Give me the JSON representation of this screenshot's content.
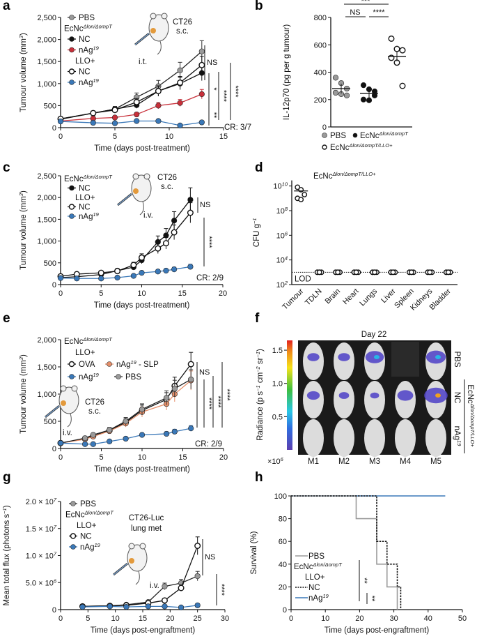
{
  "panels": [
    "a",
    "b",
    "c",
    "d",
    "e",
    "f",
    "g",
    "h"
  ],
  "colors": {
    "pbs": "#9a9a9a",
    "black": "#111111",
    "red": "#c8303a",
    "blue": "#3a78b8",
    "orange": "#e58f6a",
    "cr": "#3a7fc0"
  },
  "chart_data": [
    {
      "id": "a",
      "type": "line",
      "xlabel": "Time (days post-treatment)",
      "ylabel": "Tumour volume (mm",
      "ylabel_sup": "3",
      "ylabel_end": ")",
      "xlim": [
        0,
        15
      ],
      "ylim": [
        0,
        2500
      ],
      "xticks": [
        0,
        5,
        10,
        15
      ],
      "xtick_labels": [
        "0",
        "5",
        "10",
        "15"
      ],
      "yticks": [
        0,
        500,
        1000,
        1500,
        2000,
        2500
      ],
      "ytick_labels": [
        "0",
        "500",
        "1,000",
        "1,500",
        "2,000",
        "2,500"
      ],
      "series": [
        {
          "name": "PBS",
          "color": "#9a9a9a",
          "marker": "filled",
          "x": [
            0,
            3,
            5,
            7,
            9,
            11,
            13
          ],
          "y": [
            200,
            330,
            420,
            690,
            940,
            1300,
            1730
          ]
        },
        {
          "name": "EcNc NC",
          "color": "#111111",
          "marker": "filled",
          "x": [
            0,
            3,
            5,
            7,
            9,
            11,
            13
          ],
          "y": [
            190,
            330,
            420,
            510,
            830,
            1000,
            1240
          ]
        },
        {
          "name": "EcNc nAg19",
          "color": "#c8303a",
          "marker": "filled",
          "x": [
            0,
            3,
            5,
            7,
            9,
            11,
            13
          ],
          "y": [
            150,
            210,
            230,
            300,
            500,
            560,
            760
          ]
        },
        {
          "name": "LLO+ NC",
          "color": "#111111",
          "marker": "open",
          "x": [
            0,
            3,
            5,
            7,
            9,
            11,
            13
          ],
          "y": [
            200,
            330,
            400,
            580,
            830,
            1020,
            1420
          ]
        },
        {
          "name": "LLO+ nAg19",
          "color": "#3a78b8",
          "marker": "filled",
          "x": [
            0,
            3,
            5,
            7,
            9,
            11,
            13
          ],
          "y": [
            140,
            110,
            100,
            150,
            150,
            50,
            120
          ]
        }
      ],
      "legend": [
        {
          "label": "PBS",
          "marker": "filled",
          "color": "#9a9a9a"
        },
        {
          "label": "EcNc",
          "sup": "Δlon/ΔompT",
          "marker": "none"
        },
        {
          "label": "NC",
          "marker": "filled",
          "color": "#111111"
        },
        {
          "label": "nAg",
          "sup": "19",
          "marker": "filled",
          "color": "#c8303a"
        },
        {
          "label": "LLO+",
          "marker": "none"
        },
        {
          "label": "NC",
          "marker": "open",
          "color": "#111111"
        },
        {
          "label": "nAg",
          "sup": "19",
          "marker": "filled",
          "color": "#3a78b8"
        }
      ],
      "annotations": {
        "model": "CT26",
        "route": "s.c.",
        "injection": "i.t.",
        "cr": "CR: 3/7"
      },
      "significance": [
        "NS",
        "*",
        "**",
        "****",
        "****"
      ]
    },
    {
      "id": "b",
      "type": "scatter",
      "ylabel": "IL-12p70 (pg per g tumour)",
      "ylim": [
        0,
        800
      ],
      "yticks": [
        0,
        200,
        400,
        600,
        800
      ],
      "ytick_labels": [
        "0",
        "200",
        "400",
        "600",
        "800"
      ],
      "groups": [
        {
          "name": "PBS",
          "color": "#9a9a9a",
          "marker": "filled",
          "values": [
            360,
            320,
            280,
            250,
            240,
            230
          ],
          "mean": 280
        },
        {
          "name": "EcNc Δlon/ΔompT",
          "color": "#111111",
          "marker": "filled",
          "values": [
            305,
            275,
            230,
            200,
            195,
            260
          ],
          "mean": 245
        },
        {
          "name": "EcNc Δlon/ΔompT/LLO+",
          "color": "#111111",
          "marker": "open",
          "values": [
            645,
            570,
            560,
            505,
            470,
            300
          ],
          "mean": 515
        }
      ],
      "legend": [
        {
          "label": "PBS",
          "marker": "filled",
          "color": "#9a9a9a"
        },
        {
          "label": "EcNc",
          "sup": "Δlon/ΔompT",
          "marker": "filled",
          "color": "#111111"
        },
        {
          "label": "EcNc",
          "sup": "Δlon/ΔompT/LLO+",
          "marker": "open",
          "color": "#111111"
        }
      ],
      "significance": [
        "***",
        "NS",
        "****"
      ]
    },
    {
      "id": "c",
      "type": "line",
      "xlabel": "Time (days post-treatment)",
      "ylabel": "Tumour volume (mm",
      "ylabel_sup": "3",
      "ylabel_end": ")",
      "xlim": [
        0,
        20
      ],
      "ylim": [
        0,
        2500
      ],
      "xticks": [
        0,
        5,
        10,
        15,
        20
      ],
      "xtick_labels": [
        "0",
        "5",
        "10",
        "15",
        "20"
      ],
      "yticks": [
        0,
        500,
        1000,
        1500,
        2000,
        2500
      ],
      "ytick_labels": [
        "0",
        "500",
        "1,000",
        "1,500",
        "2,000",
        "2,500"
      ],
      "series": [
        {
          "name": "EcNc NC",
          "color": "#111111",
          "marker": "filled",
          "x": [
            0,
            2,
            5,
            7,
            9,
            10,
            12,
            13,
            14,
            16
          ],
          "y": [
            160,
            180,
            230,
            320,
            400,
            560,
            980,
            1130,
            1470,
            1950
          ]
        },
        {
          "name": "LLO+ NC",
          "color": "#111111",
          "marker": "open",
          "x": [
            0,
            2,
            5,
            7,
            9,
            10,
            12,
            13,
            14,
            16
          ],
          "y": [
            190,
            240,
            270,
            310,
            450,
            620,
            830,
            950,
            1200,
            1650
          ]
        },
        {
          "name": "LLO+ nAg19",
          "color": "#3a78b8",
          "marker": "filled",
          "x": [
            0,
            2,
            5,
            7,
            9,
            10,
            12,
            13,
            14,
            16
          ],
          "y": [
            150,
            140,
            140,
            160,
            200,
            270,
            300,
            320,
            350,
            410
          ]
        }
      ],
      "legend": [
        {
          "label": "EcNc",
          "sup": "Δlon/ΔompT",
          "marker": "none"
        },
        {
          "label": "NC",
          "marker": "filled",
          "color": "#111111"
        },
        {
          "label": "LLO+",
          "marker": "none"
        },
        {
          "label": "NC",
          "marker": "open",
          "color": "#111111"
        },
        {
          "label": "nAg",
          "sup": "19",
          "marker": "filled",
          "color": "#3a78b8"
        }
      ],
      "annotations": {
        "model": "CT26",
        "route": "s.c.",
        "injection": "i.v.",
        "cr": "CR: 2/9"
      },
      "significance": [
        "NS",
        "****"
      ]
    },
    {
      "id": "d",
      "type": "scatter",
      "ylabel": "CFU g",
      "ylabel_sup": "−1",
      "yscale": "log",
      "ylim": [
        100,
        100000000000
      ],
      "yticks": [
        2,
        4,
        6,
        8,
        10
      ],
      "ytick_labels": [
        "10",
        "10",
        "10",
        "10",
        "10"
      ],
      "ytick_sups": [
        "2",
        "4",
        "6",
        "8",
        "10"
      ],
      "title": "EcNc",
      "title_sup": "Δlon/ΔompT/LLO+",
      "categories": [
        "Tumour",
        "TDLN",
        "Brain",
        "Heart",
        "Lungs",
        "Liver",
        "Spleen",
        "Kidneys",
        "Bladder"
      ],
      "values_log10": [
        [
          9.9,
          9.7,
          9.3,
          9.0,
          8.9
        ],
        [
          3,
          3,
          3,
          3,
          3
        ],
        [
          3,
          3,
          3,
          3,
          3
        ],
        [
          3,
          3,
          3,
          3,
          3
        ],
        [
          3,
          3,
          3,
          3,
          3
        ],
        [
          3,
          3,
          3,
          3,
          3
        ],
        [
          3,
          3,
          3,
          3,
          3
        ],
        [
          3,
          3,
          3,
          3,
          3
        ],
        [
          3,
          3,
          3,
          3,
          3
        ]
      ],
      "lod_log10": 3,
      "lod_label": "LOD"
    },
    {
      "id": "e",
      "type": "line",
      "xlabel": "Time (days post-treatment)",
      "ylabel": "Tumour volume (mm",
      "ylabel_sup": "3",
      "ylabel_end": ")",
      "xlim": [
        0,
        20
      ],
      "ylim": [
        0,
        2000
      ],
      "xticks": [
        0,
        5,
        10,
        15,
        20
      ],
      "xtick_labels": [
        "0",
        "5",
        "10",
        "15",
        "20"
      ],
      "yticks": [
        0,
        500,
        1000,
        1500,
        2000
      ],
      "ytick_labels": [
        "0",
        "500",
        "1,000",
        "1,500",
        "2,000"
      ],
      "series": [
        {
          "name": "OVA",
          "color": "#111111",
          "marker": "open",
          "x": [
            0,
            3,
            4,
            6,
            8,
            10,
            13,
            14,
            16
          ],
          "y": [
            100,
            180,
            230,
            330,
            480,
            700,
            900,
            1150,
            1550
          ]
        },
        {
          "name": "nAg19 - SLP",
          "color": "#e58f6a",
          "marker": "filled",
          "x": [
            0,
            3,
            4,
            6,
            8,
            10,
            13,
            14,
            16
          ],
          "y": [
            100,
            170,
            220,
            320,
            460,
            670,
            820,
            1000,
            1250
          ]
        },
        {
          "name": "PBS",
          "color": "#9a9a9a",
          "marker": "filled",
          "x": [
            0,
            3,
            4,
            6,
            8,
            10,
            13,
            14,
            16
          ],
          "y": [
            100,
            190,
            250,
            340,
            500,
            720,
            930,
            1100,
            1270
          ]
        },
        {
          "name": "nAg19",
          "color": "#3a78b8",
          "marker": "filled",
          "x": [
            0,
            3,
            4,
            6,
            8,
            10,
            13,
            14,
            16
          ],
          "y": [
            100,
            80,
            80,
            130,
            180,
            250,
            270,
            310,
            370
          ]
        }
      ],
      "legend": [
        {
          "label": "EcNc",
          "sup": "Δlon/ΔompT",
          "marker": "none"
        },
        {
          "label": "LLO+",
          "marker": "none"
        },
        {
          "label": "OVA",
          "marker": "open",
          "color": "#111111"
        },
        {
          "label": "nAg",
          "sup": "19",
          "marker": "filled",
          "color": "#3a78b8"
        },
        {
          "label": "nAg",
          "sup": "19",
          "tail": " - SLP",
          "marker": "filled",
          "color": "#e58f6a"
        },
        {
          "label": "PBS",
          "marker": "filled",
          "color": "#9a9a9a"
        }
      ],
      "annotations": {
        "model": "CT26",
        "route": "s.c.",
        "injection": "i.v.",
        "cr": "CR: 2/9"
      },
      "significance": [
        "NS",
        "****",
        "****",
        "****"
      ]
    },
    {
      "id": "g",
      "type": "line",
      "xlabel": "Time (days post-engraftment)",
      "ylabel": "Mean total flux (photons s",
      "ylabel_sup": "−1",
      "ylabel_end": ")",
      "xlim": [
        0,
        30
      ],
      "ylim": [
        0,
        20000000
      ],
      "xticks": [
        0,
        5,
        10,
        15,
        20,
        25,
        30
      ],
      "xtick_labels": [
        "0",
        "5",
        "10",
        "15",
        "20",
        "25",
        "30"
      ],
      "yticks": [
        0,
        5000000,
        10000000,
        15000000,
        20000000
      ],
      "ytick_labels": [
        "0",
        "5.0 × 10",
        "1.0 × 10",
        "1.5 × 10",
        "2.0 × 10"
      ],
      "ytick_sups": [
        "",
        "6",
        "7",
        "7",
        "7"
      ],
      "series": [
        {
          "name": "PBS",
          "color": "#9a9a9a",
          "marker": "filled",
          "x": [
            4,
            9,
            12,
            16,
            19,
            22,
            25
          ],
          "y": [
            600000,
            700000,
            900000,
            1400000,
            4300000,
            4900000,
            6200000
          ]
        },
        {
          "name": "LLO+ NC",
          "color": "#111111",
          "marker": "open",
          "x": [
            4,
            9,
            12,
            16,
            19,
            22,
            25
          ],
          "y": [
            600000,
            700000,
            800000,
            1200000,
            1700000,
            4000000,
            11800000
          ]
        },
        {
          "name": "LLO+ nAg19",
          "color": "#3a78b8",
          "marker": "filled",
          "x": [
            4,
            9,
            12,
            16,
            19,
            22,
            25
          ],
          "y": [
            500000,
            600000,
            500000,
            600000,
            600000,
            400000,
            800000
          ]
        }
      ],
      "legend": [
        {
          "label": "PBS",
          "marker": "filled",
          "color": "#9a9a9a"
        },
        {
          "label": "EcNc",
          "sup": "Δlon/ΔompT",
          "marker": "none"
        },
        {
          "label": "LLO+",
          "marker": "none"
        },
        {
          "label": "NC",
          "marker": "open",
          "color": "#111111"
        },
        {
          "label": "nAg",
          "sup": "19",
          "marker": "filled",
          "color": "#3a78b8"
        }
      ],
      "annotations": {
        "model": "CT26-Luc",
        "model2": "lung met",
        "injection": "i.v."
      },
      "significance": [
        "NS",
        "****"
      ]
    },
    {
      "id": "h",
      "type": "line",
      "step": true,
      "xlabel": "Time (days post-engraftment)",
      "ylabel": "Survival (%)",
      "xlim": [
        0,
        50
      ],
      "ylim": [
        0,
        100
      ],
      "xticks": [
        0,
        10,
        20,
        30,
        40,
        50
      ],
      "xtick_labels": [
        "0",
        "10",
        "20",
        "30",
        "40",
        "50"
      ],
      "yticks": [
        0,
        20,
        40,
        60,
        80,
        100
      ],
      "ytick_labels": [
        "0",
        "20",
        "40",
        "60",
        "80",
        "100"
      ],
      "series": [
        {
          "name": "nAg19",
          "color": "#3a78b8",
          "dash": "solid",
          "x": [
            0,
            45
          ],
          "y": [
            100,
            100
          ]
        },
        {
          "name": "PBS",
          "color": "#9a9a9a",
          "dash": "solid",
          "x": [
            0,
            19,
            25,
            28,
            31
          ],
          "y": [
            100,
            80,
            40,
            20,
            0
          ]
        },
        {
          "name": "NC",
          "color": "#111111",
          "dash": "dashed",
          "x": [
            0,
            25,
            28,
            31,
            32
          ],
          "y": [
            100,
            60,
            40,
            20,
            0
          ]
        }
      ],
      "legend": [
        {
          "label": "PBS",
          "marker": "line",
          "color": "#9a9a9a"
        },
        {
          "label": "EcNc",
          "sup": "Δlon/ΔompT",
          "marker": "none"
        },
        {
          "label": "LLO+",
          "marker": "none"
        },
        {
          "label": "NC",
          "marker": "dash",
          "color": "#111111"
        },
        {
          "label": "nAg",
          "sup": "19",
          "marker": "line",
          "color": "#3a78b8"
        }
      ],
      "significance": [
        "**",
        "**"
      ]
    }
  ],
  "imaging": {
    "title": "Day 22",
    "colorbar_label": "Radiance (p s",
    "colorbar_sup1": "−1",
    "colorbar_mid": " cm",
    "colorbar_sup2": "−2",
    "colorbar_mid2": " sr",
    "colorbar_sup3": "−1",
    "colorbar_end": ")",
    "colorbar_ticks": [
      "1.5",
      "1.0",
      "0.5"
    ],
    "colorbar_ticks_values": [
      1.5,
      1.0,
      0.5
    ],
    "multiplier": "×10",
    "multiplier_sup": "6",
    "mice": [
      "M1",
      "M2",
      "M3",
      "M4",
      "M5"
    ],
    "rows": [
      "PBS",
      "NC",
      "nAg"
    ],
    "row_sup": "19",
    "group_label": "EcNc",
    "group_sup": "Δlon/ΔompT/LLO+",
    "signal": [
      [
        0.3,
        0.3,
        0.8,
        null,
        0.9
      ],
      [
        0.35,
        0.15,
        0.05,
        0.6,
        1.2
      ],
      [
        0,
        0,
        0,
        0,
        0
      ]
    ]
  }
}
